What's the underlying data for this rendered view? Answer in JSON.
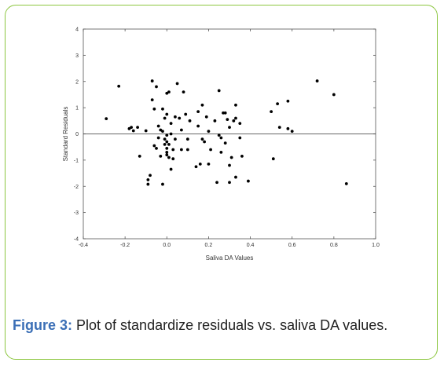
{
  "colors": {
    "frame_border": "#8cc63f",
    "caption_label": "#3b6fb6",
    "points": "#000000"
  },
  "caption": {
    "label": "Figure 3:",
    "text": " Plot of standardize residuals vs. saliva DA values."
  },
  "chart_data": {
    "type": "scatter",
    "title": "",
    "xlabel": "Saliva DA Values",
    "ylabel": "Standard Residuals",
    "xlim": [
      -0.4,
      1.0
    ],
    "ylim": [
      -4,
      4
    ],
    "xticks": [
      -0.4,
      -0.2,
      0.0,
      0.2,
      0.4,
      0.6,
      0.8,
      1.0
    ],
    "xtick_labels": [
      "-0.4",
      "-0.2",
      "0.0",
      "0.2",
      "0.4",
      "0.6",
      "0.8",
      "1.0"
    ],
    "yticks": [
      -4,
      -3,
      -2,
      -1,
      0,
      1,
      2,
      3,
      4
    ],
    "ytick_labels": [
      "-4",
      "-3",
      "-2",
      "-1",
      "0",
      "1",
      "2",
      "3",
      "4"
    ],
    "reference_line_y": 0,
    "grid": false,
    "points": [
      [
        -0.29,
        0.58
      ],
      [
        -0.23,
        1.82
      ],
      [
        -0.18,
        0.2
      ],
      [
        -0.17,
        0.25
      ],
      [
        -0.16,
        0.12
      ],
      [
        -0.14,
        0.25
      ],
      [
        -0.13,
        -0.85
      ],
      [
        -0.1,
        0.12
      ],
      [
        -0.09,
        -1.75
      ],
      [
        -0.09,
        -1.92
      ],
      [
        -0.08,
        -1.58
      ],
      [
        -0.07,
        2.02
      ],
      [
        -0.07,
        1.3
      ],
      [
        -0.06,
        0.95
      ],
      [
        -0.06,
        -0.45
      ],
      [
        -0.05,
        1.8
      ],
      [
        -0.05,
        -0.55
      ],
      [
        -0.04,
        0.3
      ],
      [
        -0.04,
        -0.15
      ],
      [
        -0.03,
        0.15
      ],
      [
        -0.03,
        -0.85
      ],
      [
        -0.02,
        0.95
      ],
      [
        -0.02,
        0.1
      ],
      [
        -0.02,
        -1.92
      ],
      [
        -0.01,
        0.6
      ],
      [
        -0.01,
        -0.4
      ],
      [
        -0.01,
        -0.2
      ],
      [
        0.0,
        0.75
      ],
      [
        0.0,
        -0.05
      ],
      [
        0.0,
        -0.3
      ],
      [
        0.0,
        -0.55
      ],
      [
        0.0,
        -0.7
      ],
      [
        0.0,
        -0.8
      ],
      [
        0.0,
        1.55
      ],
      [
        0.01,
        1.6
      ],
      [
        0.01,
        -0.9
      ],
      [
        0.01,
        -0.4
      ],
      [
        0.02,
        0.4
      ],
      [
        0.02,
        0.0
      ],
      [
        0.02,
        -1.35
      ],
      [
        0.03,
        -0.6
      ],
      [
        0.03,
        -0.95
      ],
      [
        0.04,
        0.65
      ],
      [
        0.04,
        -0.2
      ],
      [
        0.05,
        1.92
      ],
      [
        0.06,
        0.6
      ],
      [
        0.07,
        0.15
      ],
      [
        0.07,
        -0.6
      ],
      [
        0.08,
        1.6
      ],
      [
        0.09,
        0.75
      ],
      [
        0.1,
        -0.2
      ],
      [
        0.1,
        -0.6
      ],
      [
        0.11,
        0.5
      ],
      [
        0.14,
        -1.25
      ],
      [
        0.15,
        0.85
      ],
      [
        0.15,
        0.3
      ],
      [
        0.16,
        -1.15
      ],
      [
        0.17,
        1.1
      ],
      [
        0.17,
        -0.2
      ],
      [
        0.18,
        -0.3
      ],
      [
        0.19,
        0.65
      ],
      [
        0.2,
        0.1
      ],
      [
        0.2,
        -1.15
      ],
      [
        0.21,
        -0.6
      ],
      [
        0.23,
        0.5
      ],
      [
        0.24,
        -1.85
      ],
      [
        0.25,
        1.65
      ],
      [
        0.25,
        -0.05
      ],
      [
        0.26,
        -0.15
      ],
      [
        0.26,
        -0.7
      ],
      [
        0.27,
        0.8
      ],
      [
        0.28,
        0.8
      ],
      [
        0.28,
        -0.35
      ],
      [
        0.29,
        0.55
      ],
      [
        0.3,
        0.25
      ],
      [
        0.3,
        -1.2
      ],
      [
        0.3,
        -1.85
      ],
      [
        0.31,
        -0.9
      ],
      [
        0.32,
        0.5
      ],
      [
        0.33,
        1.1
      ],
      [
        0.33,
        0.6
      ],
      [
        0.33,
        -1.65
      ],
      [
        0.35,
        0.4
      ],
      [
        0.35,
        -0.15
      ],
      [
        0.36,
        -0.85
      ],
      [
        0.39,
        -1.8
      ],
      [
        0.5,
        0.85
      ],
      [
        0.51,
        -0.95
      ],
      [
        0.53,
        1.15
      ],
      [
        0.54,
        0.25
      ],
      [
        0.58,
        1.25
      ],
      [
        0.58,
        0.2
      ],
      [
        0.6,
        0.1
      ],
      [
        0.72,
        2.02
      ],
      [
        0.8,
        1.5
      ],
      [
        0.86,
        -1.9
      ]
    ]
  }
}
